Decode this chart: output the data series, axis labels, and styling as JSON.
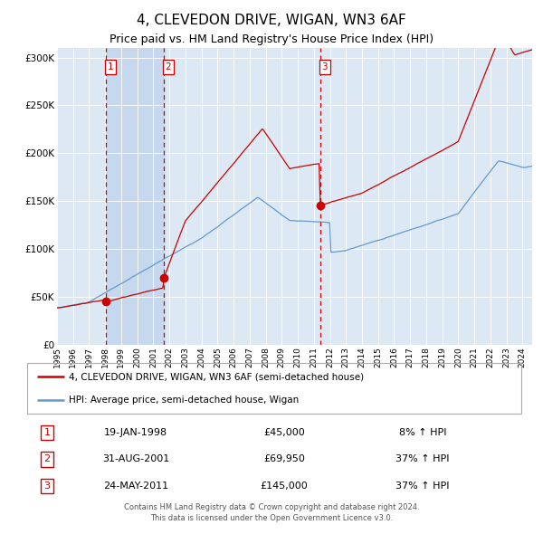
{
  "title": "4, CLEVEDON DRIVE, WIGAN, WN3 6AF",
  "subtitle": "Price paid vs. HM Land Registry's House Price Index (HPI)",
  "title_fontsize": 11,
  "subtitle_fontsize": 9,
  "background_color": "#ffffff",
  "plot_bg_color": "#dce9f5",
  "ylim": [
    0,
    310000
  ],
  "yticks": [
    0,
    50000,
    100000,
    150000,
    200000,
    250000,
    300000
  ],
  "ytick_labels": [
    "£0",
    "£50K",
    "£100K",
    "£150K",
    "£200K",
    "£250K",
    "£300K"
  ],
  "xmin": 1995.0,
  "xmax": 2024.6,
  "transactions": [
    {
      "label": "1",
      "date_str": "19-JAN-1998",
      "price": 45000,
      "price_str": "£45,000",
      "date_num": 1998.05,
      "pct": "8%",
      "direction": "↑"
    },
    {
      "label": "2",
      "date_str": "31-AUG-2001",
      "price": 69950,
      "price_str": "£69,950",
      "date_num": 2001.67,
      "pct": "37%",
      "direction": "↑"
    },
    {
      "label": "3",
      "date_str": "24-MAY-2011",
      "price": 145000,
      "price_str": "£145,000",
      "date_num": 2011.4,
      "pct": "37%",
      "direction": "↑"
    }
  ],
  "legend_line1": "4, CLEVEDON DRIVE, WIGAN, WN3 6AF (semi-detached house)",
  "legend_line2": "HPI: Average price, semi-detached house, Wigan",
  "footer1": "Contains HM Land Registry data © Crown copyright and database right 2024.",
  "footer2": "This data is licensed under the Open Government Licence v3.0.",
  "red_line_color": "#cc0000",
  "blue_line_color": "#6699cc",
  "vline_color": "#cc0000",
  "shade_color": "#c5d8ed"
}
